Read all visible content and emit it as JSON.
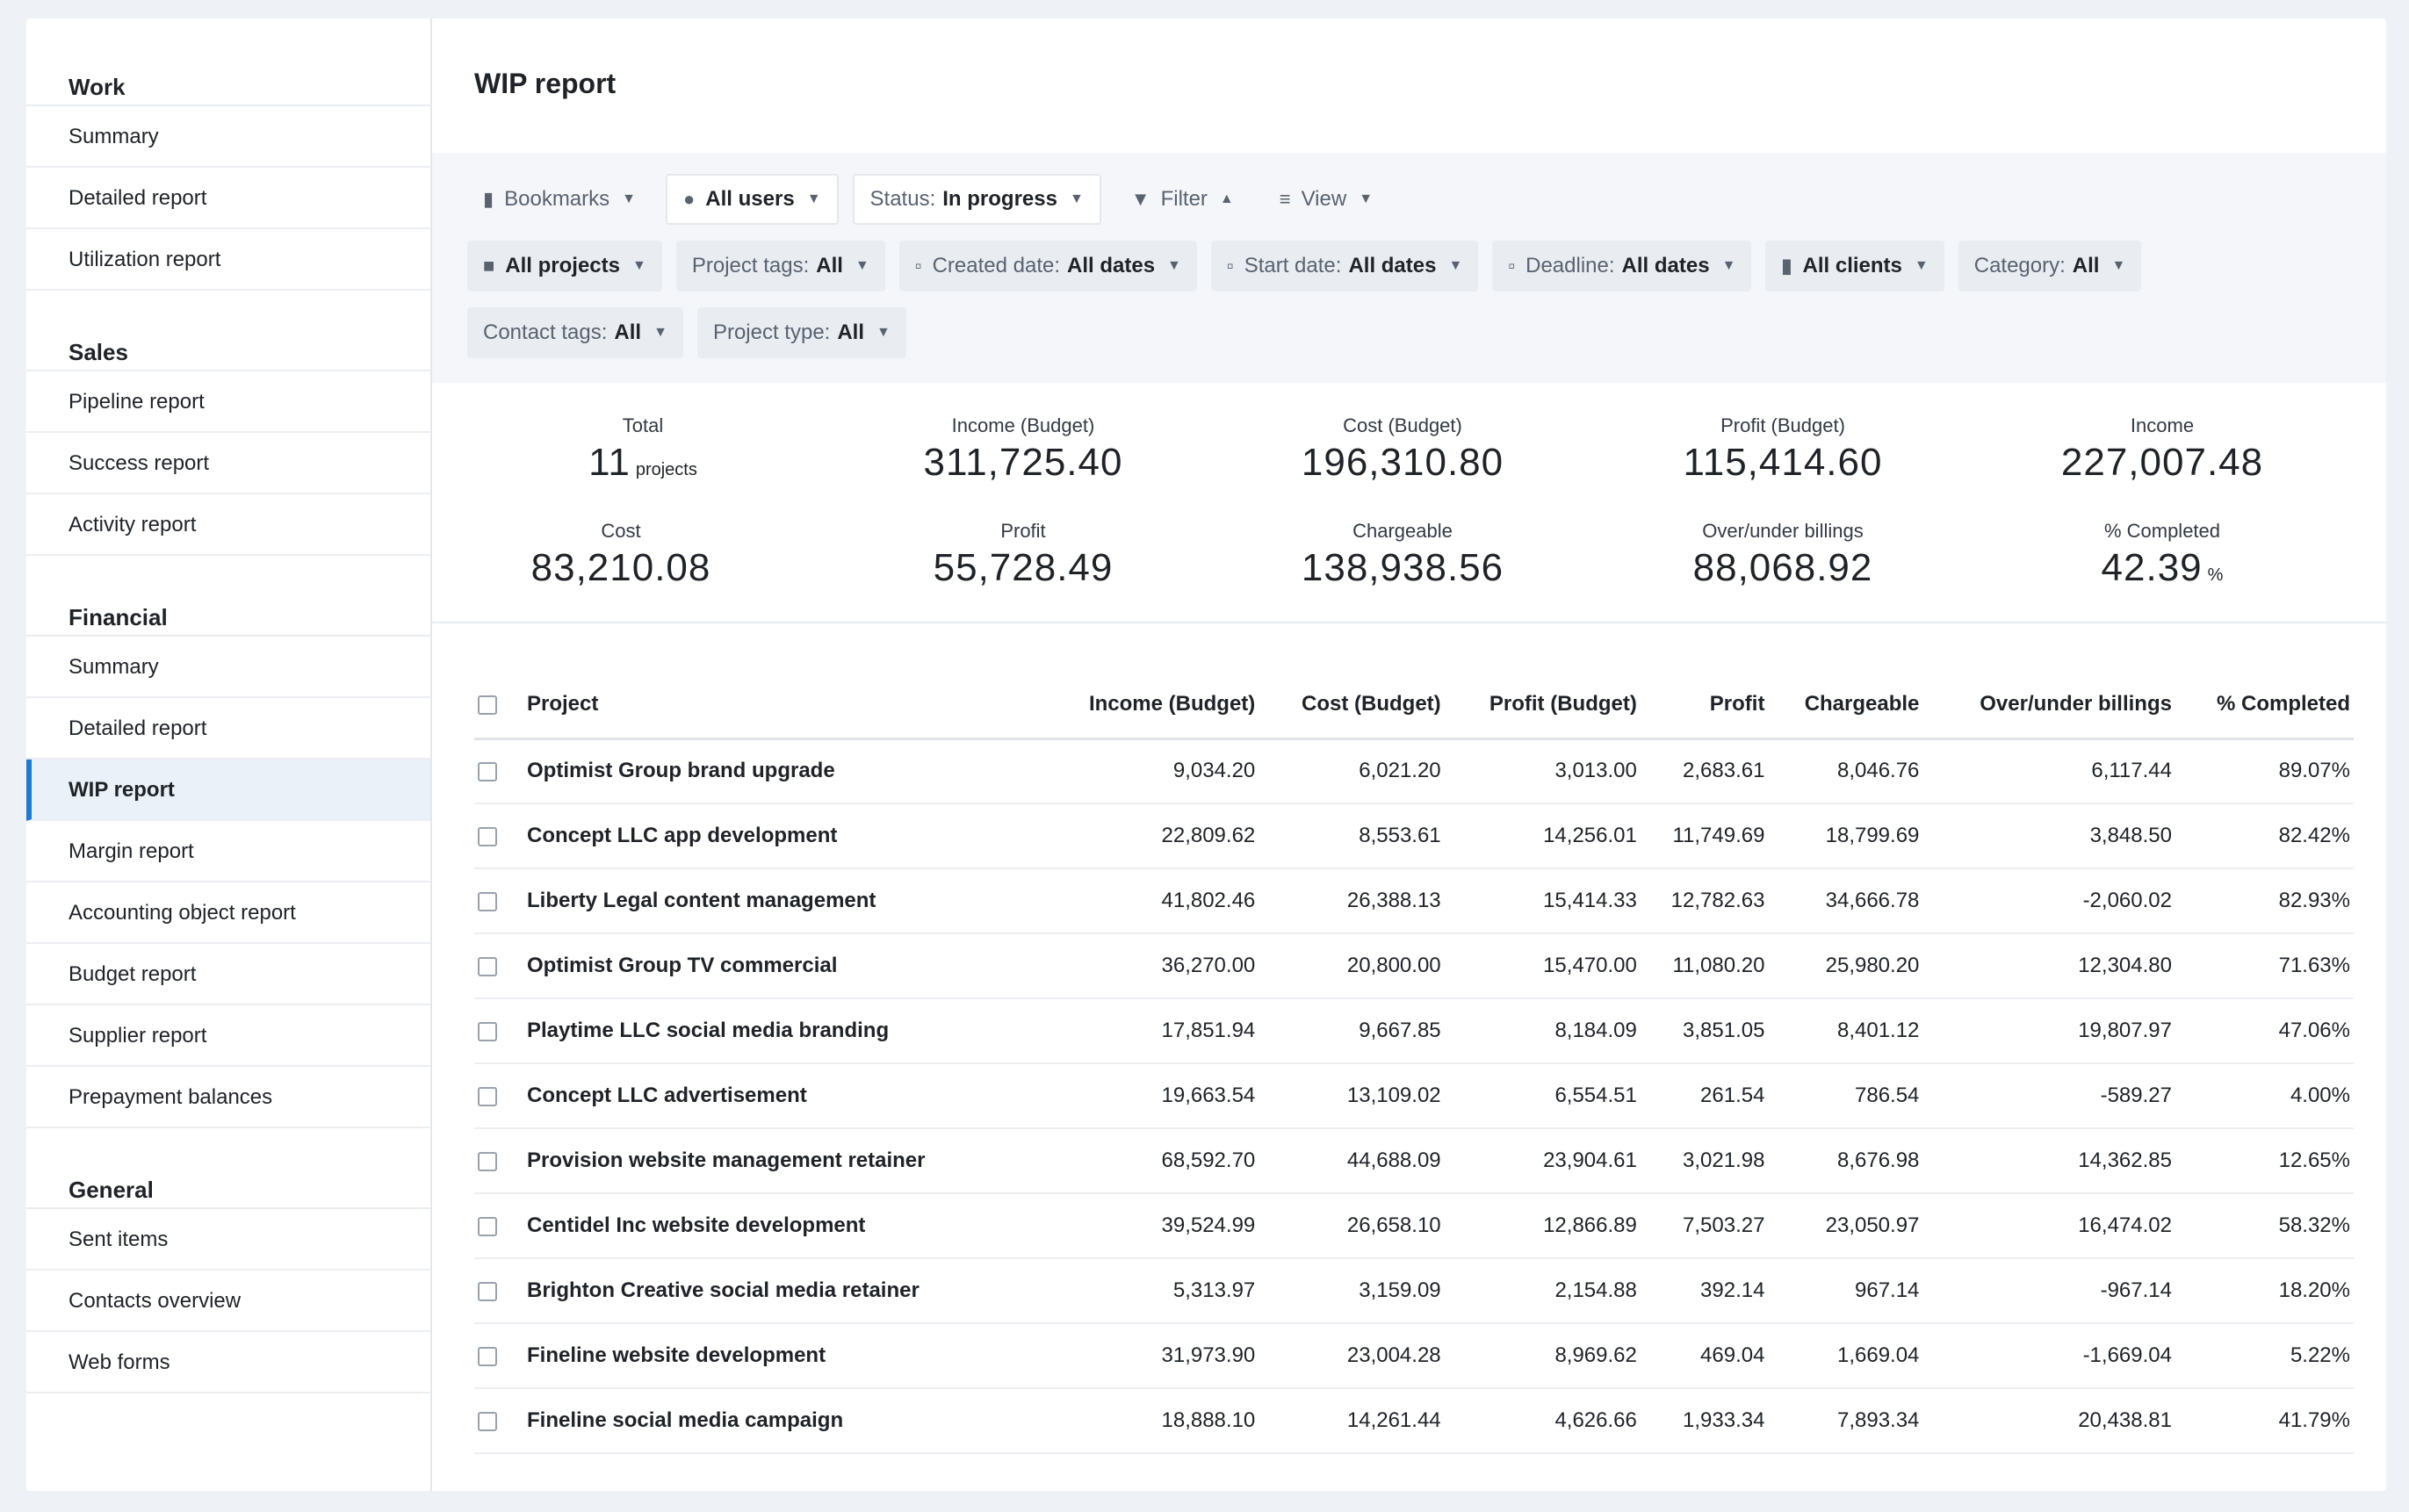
{
  "sidebar": {
    "sections": [
      {
        "title": "Work",
        "items": [
          "Summary",
          "Detailed report",
          "Utilization report"
        ]
      },
      {
        "title": "Sales",
        "items": [
          "Pipeline report",
          "Success report",
          "Activity report"
        ]
      },
      {
        "title": "Financial",
        "items": [
          "Summary",
          "Detailed report",
          "WIP report",
          "Margin report",
          "Accounting object report",
          "Budget report",
          "Supplier report",
          "Prepayment balances"
        ]
      },
      {
        "title": "General",
        "items": [
          "Sent items",
          "Contacts overview",
          "Web forms"
        ]
      }
    ],
    "active_item": "WIP report"
  },
  "header": {
    "title": "WIP report"
  },
  "filters": {
    "bookmarks": "Bookmarks",
    "users": "All users",
    "status_label": "Status:",
    "status_value": "In progress",
    "filter": "Filter",
    "view": "View",
    "projects": "All projects",
    "project_tags_label": "Project tags:",
    "project_tags_value": "All",
    "created_label": "Created date:",
    "created_value": "All dates",
    "start_label": "Start date:",
    "start_value": "All dates",
    "deadline_label": "Deadline:",
    "deadline_value": "All dates",
    "clients": "All clients",
    "category_label": "Category:",
    "category_value": "All",
    "contact_tags_label": "Contact tags:",
    "contact_tags_value": "All",
    "project_type_label": "Project type:",
    "project_type_value": "All"
  },
  "stats": {
    "total_label": "Total",
    "total_value": "11",
    "total_unit": "projects",
    "income_budget_label": "Income (Budget)",
    "income_budget_value": "311,725.40",
    "cost_budget_label": "Cost (Budget)",
    "cost_budget_value": "196,310.80",
    "profit_budget_label": "Profit (Budget)",
    "profit_budget_value": "115,414.60",
    "income_label": "Income",
    "income_value": "227,007.48",
    "cost_label": "Cost",
    "cost_value": "83,210.08",
    "profit_label": "Profit",
    "profit_value": "55,728.49",
    "chargeable_label": "Chargeable",
    "chargeable_value": "138,938.56",
    "overunder_label": "Over/under billings",
    "overunder_value": "88,068.92",
    "completed_label": "% Completed",
    "completed_value": "42.39",
    "completed_unit": "%"
  },
  "table": {
    "headers": [
      "Project",
      "Income (Budget)",
      "Cost (Budget)",
      "Profit (Budget)",
      "Profit",
      "Chargeable",
      "Over/under billings",
      "% Completed"
    ],
    "rows": [
      [
        "Optimist Group brand upgrade",
        "9,034.20",
        "6,021.20",
        "3,013.00",
        "2,683.61",
        "8,046.76",
        "6,117.44",
        "89.07%"
      ],
      [
        "Concept LLC app development",
        "22,809.62",
        "8,553.61",
        "14,256.01",
        "11,749.69",
        "18,799.69",
        "3,848.50",
        "82.42%"
      ],
      [
        "Liberty Legal content management",
        "41,802.46",
        "26,388.13",
        "15,414.33",
        "12,782.63",
        "34,666.78",
        "-2,060.02",
        "82.93%"
      ],
      [
        "Optimist Group TV commercial",
        "36,270.00",
        "20,800.00",
        "15,470.00",
        "11,080.20",
        "25,980.20",
        "12,304.80",
        "71.63%"
      ],
      [
        "Playtime LLC social media branding",
        "17,851.94",
        "9,667.85",
        "8,184.09",
        "3,851.05",
        "8,401.12",
        "19,807.97",
        "47.06%"
      ],
      [
        "Concept LLC advertisement",
        "19,663.54",
        "13,109.02",
        "6,554.51",
        "261.54",
        "786.54",
        "-589.27",
        "4.00%"
      ],
      [
        "Provision website management retainer",
        "68,592.70",
        "44,688.09",
        "23,904.61",
        "3,021.98",
        "8,676.98",
        "14,362.85",
        "12.65%"
      ],
      [
        "Centidel Inc website development",
        "39,524.99",
        "26,658.10",
        "12,866.89",
        "7,503.27",
        "23,050.97",
        "16,474.02",
        "58.32%"
      ],
      [
        "Brighton Creative social media retainer",
        "5,313.97",
        "3,159.09",
        "2,154.88",
        "392.14",
        "967.14",
        "-967.14",
        "18.20%"
      ],
      [
        "Fineline website development",
        "31,973.90",
        "23,004.28",
        "8,969.62",
        "469.04",
        "1,669.04",
        "-1,669.04",
        "5.22%"
      ],
      [
        "Fineline social media campaign",
        "18,888.10",
        "14,261.44",
        "4,626.66",
        "1,933.34",
        "7,893.34",
        "20,438.81",
        "41.79%"
      ]
    ]
  },
  "colors": {
    "accent": "#1a7ad4",
    "active_bg": "#eaf1f8",
    "filter_bg": "#f4f6f9",
    "page_bg": "#eef1f6"
  }
}
